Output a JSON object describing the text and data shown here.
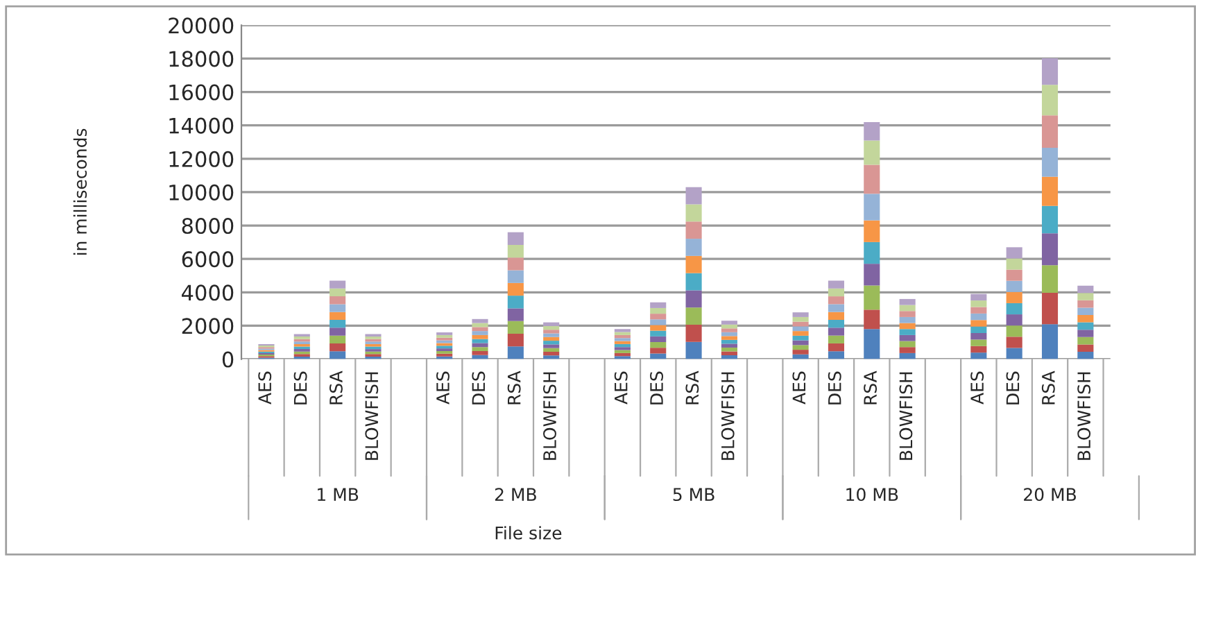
{
  "chart_data": {
    "type": "bar",
    "stacked": true,
    "xlabel": "File size",
    "ylabel": "in milliseconds",
    "categories": [
      "AES",
      "DES",
      "RSA",
      "BLOWFISH",
      null,
      "AES",
      "DES",
      "RSA",
      "BLOWFISH",
      null,
      "AES",
      "DES",
      "RSA",
      "BLOWFISH",
      null,
      "AES",
      "DES",
      "RSA",
      "BLOWFISH",
      null,
      "AES",
      "DES",
      "RSA",
      "BLOWFISH"
    ],
    "annotations": [
      "1 MB",
      "2 MB",
      "5 MB",
      "10 MB",
      "20 MB"
    ],
    "ylim": [
      0,
      20000
    ],
    "yticks": [
      0,
      2000,
      4000,
      6000,
      8000,
      10000,
      12000,
      14000,
      16000,
      18000,
      20000
    ],
    "grid": "y",
    "series": [
      {
        "color": "#4f81bd",
        "values": [
          90,
          150,
          470,
          150,
          null,
          160,
          240,
          760,
          220,
          null,
          180,
          340,
          1030,
          230,
          null,
          280,
          470,
          1800,
          360,
          null,
          390,
          670,
          2090,
          440
        ]
      },
      {
        "color": "#c0504d",
        "values": [
          90,
          150,
          470,
          150,
          null,
          160,
          240,
          760,
          220,
          null,
          180,
          340,
          1030,
          230,
          null,
          280,
          470,
          1160,
          360,
          null,
          390,
          670,
          1880,
          440
        ]
      },
      {
        "color": "#9bbb59",
        "values": [
          90,
          150,
          470,
          150,
          null,
          160,
          240,
          760,
          220,
          null,
          180,
          340,
          1030,
          230,
          null,
          280,
          470,
          1450,
          360,
          null,
          390,
          670,
          1650,
          440
        ]
      },
      {
        "color": "#8064a2",
        "values": [
          90,
          150,
          470,
          150,
          null,
          160,
          240,
          760,
          220,
          null,
          180,
          340,
          1030,
          230,
          null,
          280,
          470,
          1300,
          360,
          null,
          390,
          670,
          1910,
          440
        ]
      },
      {
        "color": "#4bacc6",
        "values": [
          90,
          150,
          470,
          150,
          null,
          160,
          240,
          760,
          220,
          null,
          180,
          340,
          1030,
          230,
          null,
          280,
          470,
          1300,
          360,
          null,
          390,
          670,
          1650,
          440
        ]
      },
      {
        "color": "#f79646",
        "values": [
          90,
          150,
          470,
          150,
          null,
          160,
          240,
          760,
          220,
          null,
          180,
          340,
          1030,
          230,
          null,
          280,
          470,
          1300,
          360,
          null,
          390,
          670,
          1740,
          440
        ]
      },
      {
        "color": "#95b3d7",
        "values": [
          90,
          150,
          470,
          150,
          null,
          160,
          240,
          760,
          220,
          null,
          180,
          340,
          1030,
          230,
          null,
          280,
          470,
          1590,
          360,
          null,
          390,
          670,
          1740,
          440
        ]
      },
      {
        "color": "#d99694",
        "values": [
          90,
          150,
          470,
          150,
          null,
          160,
          240,
          760,
          220,
          null,
          180,
          340,
          1030,
          230,
          null,
          280,
          470,
          1740,
          360,
          null,
          390,
          670,
          1940,
          440
        ]
      },
      {
        "color": "#c3d69b",
        "values": [
          90,
          150,
          470,
          150,
          null,
          160,
          240,
          760,
          220,
          null,
          180,
          340,
          1030,
          230,
          null,
          280,
          470,
          1450,
          360,
          null,
          390,
          670,
          1830,
          440
        ]
      },
      {
        "color": "#b3a2c7",
        "values": [
          90,
          150,
          470,
          150,
          null,
          160,
          240,
          760,
          220,
          null,
          180,
          340,
          1030,
          230,
          null,
          280,
          470,
          1100,
          360,
          null,
          390,
          670,
          1590,
          440
        ]
      }
    ]
  }
}
